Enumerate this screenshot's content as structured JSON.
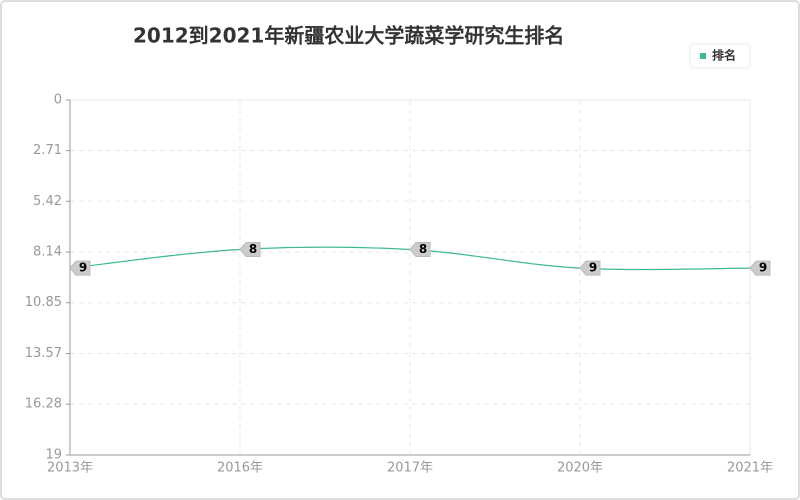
{
  "chart_data": {
    "type": "line",
    "title": "2012到2021年新疆农业大学蔬菜学研究生排名",
    "categories": [
      "2013年",
      "2016年",
      "2017年",
      "2020年",
      "2021年"
    ],
    "series": [
      {
        "name": "排名",
        "color": "#3dbb8a",
        "values": [
          9,
          8,
          8,
          9,
          9
        ]
      }
    ],
    "ylim": [
      0,
      19
    ],
    "yticks": [
      0,
      2.71,
      5.42,
      8.14,
      10.85,
      13.57,
      16.28,
      19
    ],
    "inverted": true,
    "grid": true,
    "smooth": true,
    "legend": "top-right",
    "data_labels": true
  }
}
